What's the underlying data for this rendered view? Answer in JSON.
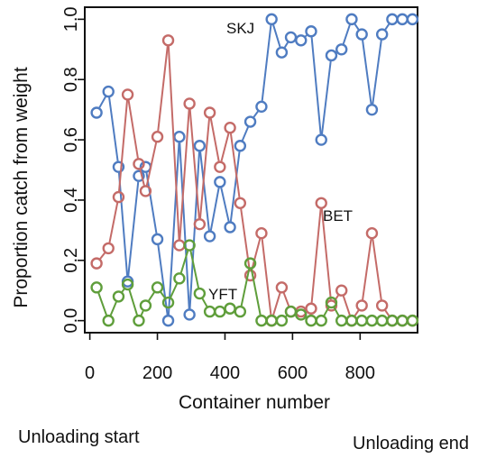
{
  "chart_data": {
    "type": "line",
    "xlabel": "Container number",
    "ylabel": "Proportion catch from weight",
    "xlim": [
      -15,
      970
    ],
    "ylim": [
      -0.04,
      1.04
    ],
    "xticks": [
      0,
      200,
      400,
      600,
      800
    ],
    "yticks": [
      0.0,
      0.2,
      0.4,
      0.6,
      0.8,
      1.0
    ],
    "ytick_labels": [
      "0.0",
      "0.2",
      "0.4",
      "0.6",
      "0.8",
      "1.0"
    ],
    "marker": "open-circle",
    "grid": false,
    "series": [
      {
        "name": "SKJ",
        "color": "#4f7cc1",
        "x": [
          20,
          55,
          85,
          112,
          145,
          165,
          200,
          232,
          265,
          295,
          325,
          355,
          385,
          415,
          445,
          475,
          508,
          538,
          568,
          595,
          625,
          655,
          685,
          715,
          745,
          775,
          805,
          835,
          865,
          895,
          925,
          955
        ],
        "y": [
          0.69,
          0.76,
          0.51,
          0.13,
          0.48,
          0.51,
          0.27,
          0.0,
          0.61,
          0.02,
          0.58,
          0.28,
          0.46,
          0.31,
          0.58,
          0.66,
          0.71,
          1.0,
          0.89,
          0.94,
          0.93,
          0.96,
          0.6,
          0.88,
          0.9,
          1.0,
          0.95,
          0.7,
          0.95,
          1.0,
          1.0,
          1.0
        ]
      },
      {
        "name": "BET",
        "color": "#c46b68",
        "x": [
          20,
          55,
          85,
          112,
          145,
          165,
          200,
          232,
          265,
          295,
          325,
          355,
          385,
          415,
          445,
          475,
          508,
          538,
          568,
          595,
          625,
          655,
          685,
          715,
          745,
          775,
          805,
          835,
          865,
          895,
          925,
          955
        ],
        "y": [
          0.19,
          0.24,
          0.41,
          0.75,
          0.52,
          0.43,
          0.61,
          0.93,
          0.25,
          0.72,
          0.32,
          0.69,
          0.51,
          0.64,
          0.39,
          0.15,
          0.29,
          0.0,
          0.11,
          0.03,
          0.03,
          0.04,
          0.39,
          0.05,
          0.1,
          0.0,
          0.05,
          0.29,
          0.05,
          0.0,
          0.0,
          0.0
        ]
      },
      {
        "name": "YFT",
        "color": "#5f9e3b",
        "x": [
          20,
          55,
          85,
          112,
          145,
          165,
          200,
          232,
          265,
          295,
          325,
          355,
          385,
          415,
          445,
          475,
          508,
          538,
          568,
          595,
          625,
          655,
          685,
          715,
          745,
          775,
          805,
          835,
          865,
          895,
          925,
          955
        ],
        "y": [
          0.11,
          0.0,
          0.08,
          0.12,
          0.0,
          0.05,
          0.11,
          0.06,
          0.14,
          0.25,
          0.09,
          0.03,
          0.03,
          0.04,
          0.03,
          0.19,
          0.0,
          0.0,
          0.0,
          0.03,
          0.02,
          0.0,
          0.0,
          0.06,
          0.0,
          0.0,
          0.0,
          0.0,
          0.0,
          0.0,
          0.0,
          0.0
        ]
      }
    ]
  },
  "annotations": {
    "unloading_start": "Unloading start",
    "unloading_end": "Unloading end"
  }
}
